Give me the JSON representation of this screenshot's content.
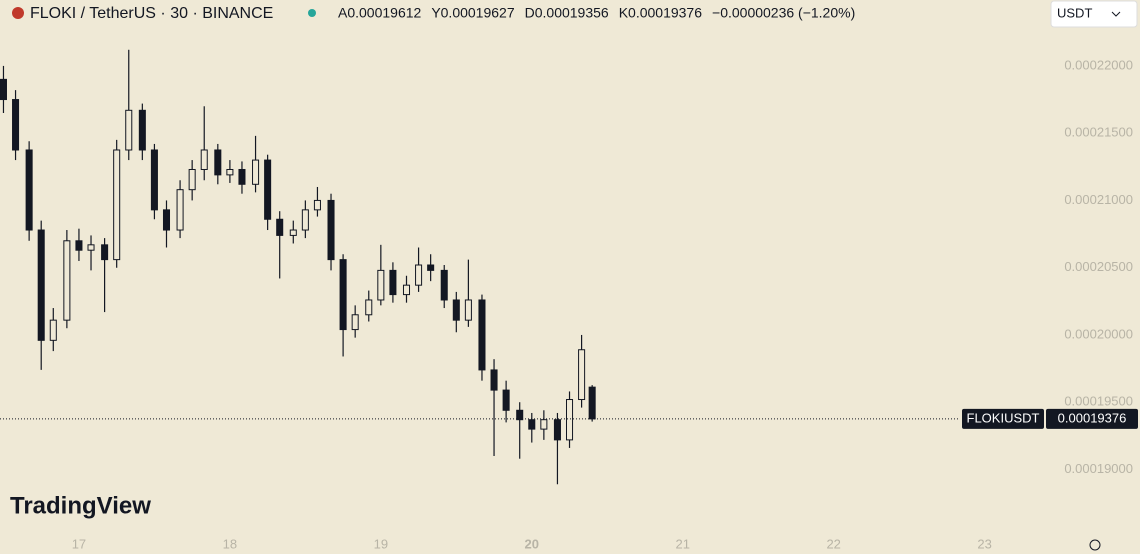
{
  "header": {
    "symbol": "FLOKI / TetherUS · 30 · BINANCE",
    "ohlc": [
      "A0.00019612",
      "Y0.00019627",
      "D0.00019356",
      "K0.00019376"
    ],
    "change": "−0.00000236 (−1.20%)"
  },
  "currency_selector": "USDT",
  "logo": "TradingView",
  "chart_data": {
    "type": "candlestick",
    "x": [
      16.5,
      16.58,
      16.67,
      16.75,
      16.83,
      16.92,
      17.0,
      17.08,
      17.17,
      17.25,
      17.33,
      17.42,
      17.5,
      17.58,
      17.67,
      17.75,
      17.83,
      17.92,
      18.0,
      18.08,
      18.17,
      18.25,
      18.33,
      18.42,
      18.5,
      18.58,
      18.67,
      18.75,
      18.83,
      18.92,
      19.0,
      19.08,
      19.17,
      19.25,
      19.33,
      19.42,
      19.5,
      19.58,
      19.67,
      19.75,
      19.83,
      19.92,
      20.0,
      20.08,
      20.17,
      20.25,
      20.33,
      20.4
    ],
    "open": [
      0.000219,
      0.0002175,
      0.00021375,
      0.0002078,
      0.0001996,
      0.0002011,
      0.000207,
      0.0002063,
      0.0002067,
      0.0002056,
      0.00021375,
      0.0002167,
      0.00021375,
      0.0002093,
      0.0002078,
      0.0002108,
      0.0002123,
      0.00021375,
      0.0002119,
      0.0002123,
      0.0002112,
      0.000213,
      0.0002086,
      0.0002074,
      0.0002078,
      0.0002093,
      0.00021,
      0.0002056,
      0.0002004,
      0.0002015,
      0.0002026,
      0.0002048,
      0.000203,
      0.0002037,
      0.0002052,
      0.0002048,
      0.0002026,
      0.0002011,
      0.0002026,
      0.0001974,
      0.0001959,
      0.0001944,
      0.0001937,
      0.000193,
      0.0001937,
      0.0001922,
      0.0001952,
      0.00019612
    ],
    "high": [
      0.00022,
      0.0002182,
      0.0002144,
      0.0002085,
      0.000202,
      0.0002078,
      0.0002079,
      0.0002074,
      0.0002072,
      0.0002145,
      0.0002212,
      0.0002172,
      0.0002142,
      0.00021,
      0.0002115,
      0.000213,
      0.000217,
      0.0002142,
      0.000213,
      0.0002129,
      0.0002148,
      0.0002134,
      0.0002092,
      0.0002085,
      0.00021,
      0.000211,
      0.0002105,
      0.000206,
      0.0002022,
      0.0002033,
      0.0002067,
      0.0002054,
      0.0002044,
      0.0002065,
      0.000206,
      0.0002052,
      0.0002032,
      0.0002056,
      0.000203,
      0.0001982,
      0.0001966,
      0.000195,
      0.0001942,
      0.0001944,
      0.0001942,
      0.0001958,
      0.0002,
      0.00019627
    ],
    "low": [
      0.0002165,
      0.000213,
      0.000207,
      0.0001974,
      0.0001988,
      0.0002005,
      0.0002055,
      0.0002048,
      0.0002017,
      0.000205,
      0.000213,
      0.000213,
      0.0002086,
      0.0002065,
      0.0002072,
      0.00021,
      0.0002115,
      0.0002112,
      0.0002113,
      0.0002105,
      0.0002106,
      0.0002078,
      0.0002042,
      0.0002068,
      0.0002072,
      0.0002088,
      0.0002048,
      0.0001984,
      0.0001998,
      0.000201,
      0.0002022,
      0.0002024,
      0.0002024,
      0.0002032,
      0.000204,
      0.000202,
      0.0002002,
      0.0002006,
      0.0001966,
      0.000191,
      0.0001935,
      0.0001908,
      0.000192,
      0.0001922,
      0.0001889,
      0.0001916,
      0.0001946,
      0.00019356
    ],
    "close": [
      0.0002175,
      0.00021375,
      0.0002078,
      0.0001996,
      0.0002011,
      0.000207,
      0.0002063,
      0.0002067,
      0.0002056,
      0.00021375,
      0.0002167,
      0.00021375,
      0.0002093,
      0.0002078,
      0.0002108,
      0.0002123,
      0.00021375,
      0.0002119,
      0.0002123,
      0.0002112,
      0.000213,
      0.0002086,
      0.0002074,
      0.0002078,
      0.0002093,
      0.00021,
      0.0002056,
      0.0002004,
      0.0002015,
      0.0002026,
      0.0002048,
      0.000203,
      0.0002037,
      0.0002052,
      0.0002048,
      0.0002026,
      0.0002011,
      0.0002026,
      0.0001974,
      0.0001959,
      0.0001944,
      0.0001937,
      0.000193,
      0.0001937,
      0.0001922,
      0.0001952,
      0.0001989,
      0.00019376
    ],
    "color": "#131722",
    "xlim": [
      16.477,
      23.4
    ],
    "xticks": [
      17,
      18,
      19,
      20,
      21,
      22,
      23
    ],
    "ylim": [
      0.0001855,
      0.0002249
    ],
    "yticks": [
      {
        "value": 0.00019,
        "label": "0.00019000"
      },
      {
        "value": 0.000195,
        "label": "0.00019500"
      },
      {
        "value": 0.0002,
        "label": "0.00020000"
      },
      {
        "value": 0.000205,
        "label": "0.00020500"
      },
      {
        "value": 0.00021,
        "label": "0.00021000"
      },
      {
        "value": 0.000215,
        "label": "0.00021500"
      },
      {
        "value": 0.00022,
        "label": "0.00022000"
      }
    ],
    "last_price": {
      "symbol": "FLOKIUSDT",
      "value": 0.00019376,
      "label": "0.00019376"
    }
  }
}
